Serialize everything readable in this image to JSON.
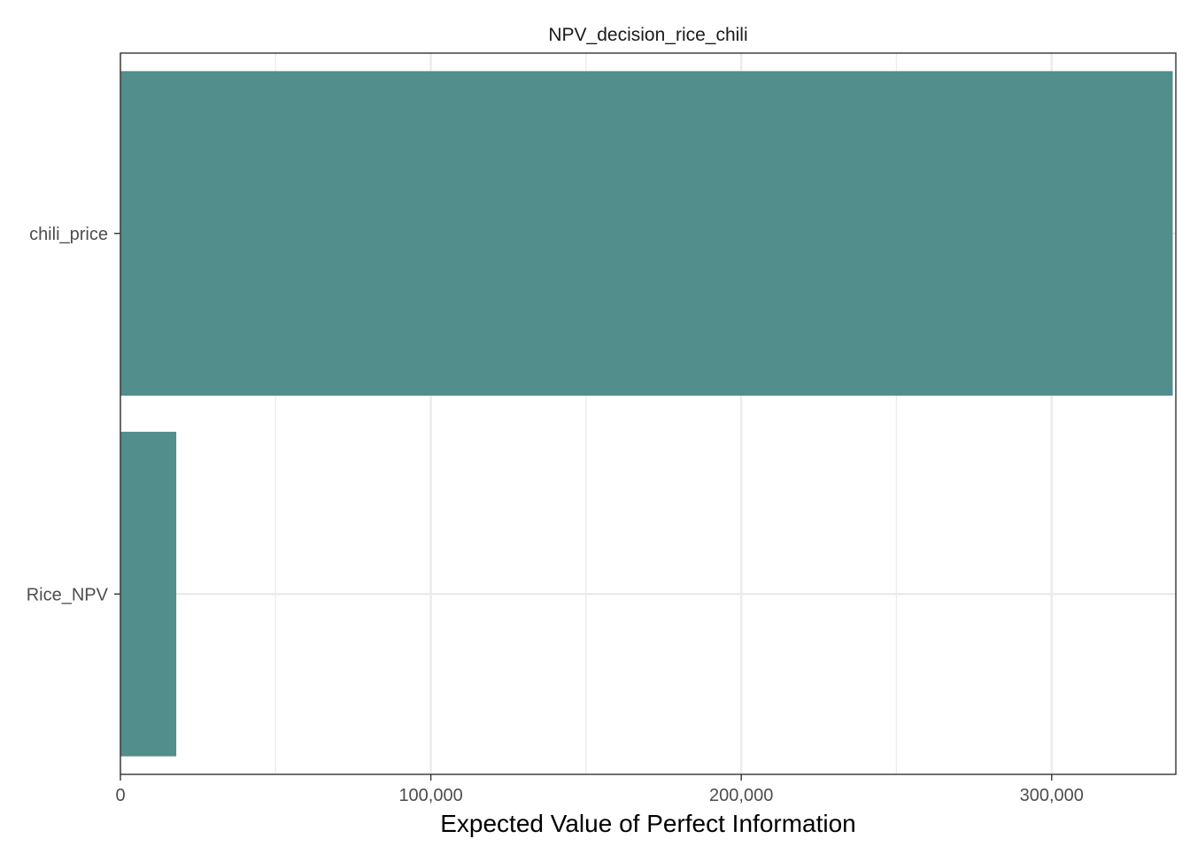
{
  "chart_data": {
    "type": "bar",
    "orientation": "horizontal",
    "title": "NPV_decision_rice_chili",
    "xlabel": "Expected Value of Perfect Information",
    "ylabel": "",
    "categories": [
      "Rice_NPV",
      "chili_price"
    ],
    "values": [
      18000,
      339000
    ],
    "xlim": [
      0,
      340000
    ],
    "xticks": [
      0,
      100000,
      200000,
      300000
    ],
    "xtick_labels": [
      "0",
      "100,000",
      "200,000",
      "300,000"
    ],
    "grid": true,
    "legend": "none",
    "colors": {
      "bar": "#518e8c",
      "grid": "#ebebeb",
      "border": "#333333"
    }
  }
}
